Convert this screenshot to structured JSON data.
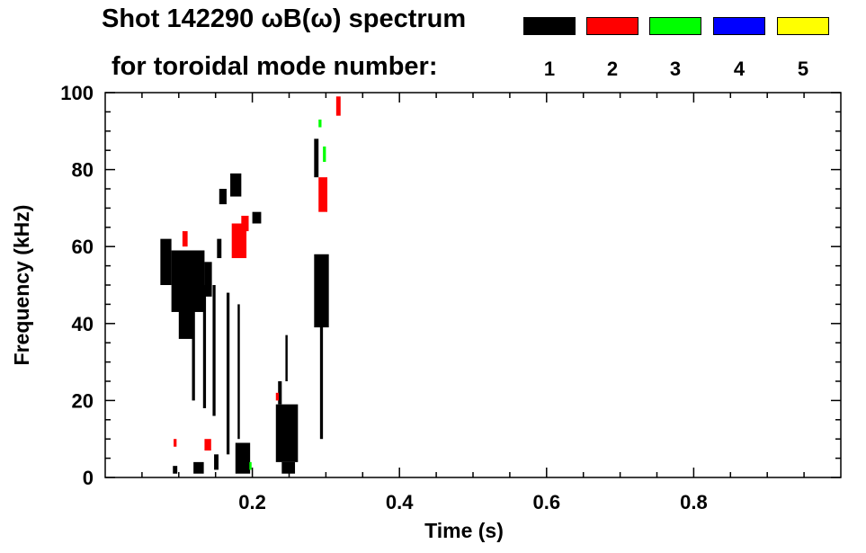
{
  "header": {
    "title_line1": "Shot 142290 ωB(ω) spectrum",
    "title_line2": "for toroidal mode number:"
  },
  "legend": {
    "modes": [
      {
        "number": "1",
        "color": "#000000"
      },
      {
        "number": "2",
        "color": "#ff0000"
      },
      {
        "number": "3",
        "color": "#00ff00"
      },
      {
        "number": "4",
        "color": "#0000ff"
      },
      {
        "number": "5",
        "color": "#ffff00"
      }
    ]
  },
  "chart_data": {
    "type": "heatmap",
    "title": "Shot 142290 ωB(ω) spectrum",
    "xlabel": "Time (s)",
    "ylabel": "Frequency (kHz)",
    "xlim": [
      0.0,
      1.0
    ],
    "ylim": [
      0,
      100
    ],
    "x_ticks": [
      0.2,
      0.4,
      0.6,
      0.8
    ],
    "x_tick_labels": [
      "0.2",
      "0.4",
      "0.6",
      "0.8"
    ],
    "y_ticks": [
      0,
      20,
      40,
      60,
      80,
      100
    ],
    "y_tick_labels": [
      "0",
      "20",
      "40",
      "60",
      "80",
      "100"
    ],
    "grid": false,
    "regions": [
      {
        "mode": 1,
        "t": [
          0.075,
          0.09
        ],
        "f": [
          50,
          62
        ]
      },
      {
        "mode": 1,
        "t": [
          0.09,
          0.135
        ],
        "f": [
          43,
          59
        ]
      },
      {
        "mode": 1,
        "t": [
          0.1,
          0.12
        ],
        "f": [
          36,
          52
        ]
      },
      {
        "mode": 1,
        "t": [
          0.135,
          0.145
        ],
        "f": [
          47,
          56
        ]
      },
      {
        "mode": 1,
        "t": [
          0.118,
          0.122
        ],
        "f": [
          20,
          45
        ]
      },
      {
        "mode": 1,
        "t": [
          0.133,
          0.137
        ],
        "f": [
          18,
          50
        ]
      },
      {
        "mode": 1,
        "t": [
          0.146,
          0.15
        ],
        "f": [
          16,
          50
        ]
      },
      {
        "mode": 1,
        "t": [
          0.165,
          0.169
        ],
        "f": [
          6,
          48
        ]
      },
      {
        "mode": 1,
        "t": [
          0.18,
          0.183
        ],
        "f": [
          10,
          45
        ]
      },
      {
        "mode": 1,
        "t": [
          0.17,
          0.185
        ],
        "f": [
          73,
          79
        ]
      },
      {
        "mode": 1,
        "t": [
          0.155,
          0.165
        ],
        "f": [
          71,
          75
        ]
      },
      {
        "mode": 1,
        "t": [
          0.152,
          0.158
        ],
        "f": [
          57,
          62
        ]
      },
      {
        "mode": 1,
        "t": [
          0.2,
          0.212
        ],
        "f": [
          66,
          69
        ]
      },
      {
        "mode": 1,
        "t": [
          0.092,
          0.098
        ],
        "f": [
          1,
          3
        ]
      },
      {
        "mode": 1,
        "t": [
          0.12,
          0.134
        ],
        "f": [
          1,
          4
        ]
      },
      {
        "mode": 1,
        "t": [
          0.148,
          0.154
        ],
        "f": [
          2,
          6
        ]
      },
      {
        "mode": 1,
        "t": [
          0.177,
          0.197
        ],
        "f": [
          1,
          9
        ]
      },
      {
        "mode": 1,
        "t": [
          0.232,
          0.262
        ],
        "f": [
          4,
          19
        ]
      },
      {
        "mode": 1,
        "t": [
          0.24,
          0.258
        ],
        "f": [
          1,
          4
        ]
      },
      {
        "mode": 1,
        "t": [
          0.235,
          0.24
        ],
        "f": [
          19,
          25
        ]
      },
      {
        "mode": 1,
        "t": [
          0.245,
          0.248
        ],
        "f": [
          25,
          37
        ]
      },
      {
        "mode": 1,
        "t": [
          0.284,
          0.304
        ],
        "f": [
          39,
          58
        ]
      },
      {
        "mode": 1,
        "t": [
          0.292,
          0.296
        ],
        "f": [
          10,
          40
        ]
      },
      {
        "mode": 1,
        "t": [
          0.284,
          0.29
        ],
        "f": [
          78,
          88
        ]
      },
      {
        "mode": 2,
        "t": [
          0.172,
          0.192
        ],
        "f": [
          57,
          66
        ]
      },
      {
        "mode": 2,
        "t": [
          0.185,
          0.195
        ],
        "f": [
          64,
          68
        ]
      },
      {
        "mode": 2,
        "t": [
          0.29,
          0.302
        ],
        "f": [
          69,
          78
        ]
      },
      {
        "mode": 2,
        "t": [
          0.314,
          0.32
        ],
        "f": [
          94,
          99
        ]
      },
      {
        "mode": 2,
        "t": [
          0.105,
          0.112
        ],
        "f": [
          60,
          64
        ]
      },
      {
        "mode": 2,
        "t": [
          0.135,
          0.144
        ],
        "f": [
          7,
          10
        ]
      },
      {
        "mode": 2,
        "t": [
          0.093,
          0.097
        ],
        "f": [
          8,
          10
        ]
      },
      {
        "mode": 2,
        "t": [
          0.232,
          0.236
        ],
        "f": [
          20,
          22
        ]
      },
      {
        "mode": 3,
        "t": [
          0.296,
          0.3
        ],
        "f": [
          82,
          86
        ]
      },
      {
        "mode": 3,
        "t": [
          0.29,
          0.294
        ],
        "f": [
          91,
          93
        ]
      },
      {
        "mode": 3,
        "t": [
          0.196,
          0.199
        ],
        "f": [
          2,
          4
        ]
      }
    ]
  }
}
